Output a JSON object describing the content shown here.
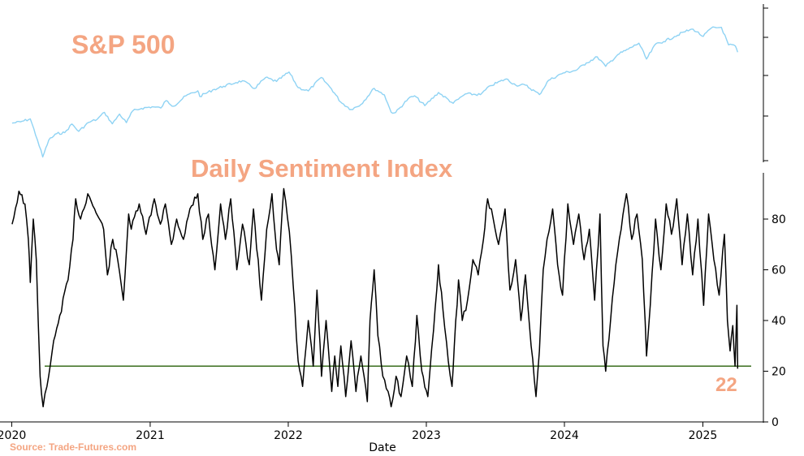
{
  "chart_data": [
    {
      "type": "line",
      "title": "S&P 500",
      "colors": {
        "title": "#f4a582",
        "line": "#8fd3f4"
      },
      "ylim": [
        2200,
        6600
      ],
      "series": [
        {
          "x": [
            "2020-01-02",
            "2020-01-24",
            "2020-02-19",
            "2020-03-09",
            "2020-03-23",
            "2020-04-08",
            "2020-04-29",
            "2020-05-20",
            "2020-06-08",
            "2020-06-26",
            "2020-07-22",
            "2020-08-14",
            "2020-09-02",
            "2020-09-23",
            "2020-10-12",
            "2020-10-30",
            "2020-11-16",
            "2020-12-09",
            "2021-01-06",
            "2021-01-29",
            "2021-02-12",
            "2021-03-04",
            "2021-04-05",
            "2021-05-07",
            "2021-05-12",
            "2021-06-15",
            "2021-07-14",
            "2021-08-16",
            "2021-09-02",
            "2021-10-04",
            "2021-11-02",
            "2021-12-01",
            "2022-01-03",
            "2022-01-27",
            "2022-02-23",
            "2022-03-29",
            "2022-04-25",
            "2022-05-19",
            "2022-06-16",
            "2022-07-12",
            "2022-08-16",
            "2022-09-12",
            "2022-09-30",
            "2022-10-12",
            "2022-11-14",
            "2022-12-01",
            "2022-12-28",
            "2023-02-02",
            "2023-03-13",
            "2023-04-14",
            "2023-05-24",
            "2023-06-20",
            "2023-07-31",
            "2023-08-25",
            "2023-09-20",
            "2023-10-27",
            "2023-11-20",
            "2023-12-29",
            "2024-01-31",
            "2024-02-28",
            "2024-03-28",
            "2024-04-19",
            "2024-05-21",
            "2024-06-18",
            "2024-07-16",
            "2024-08-05",
            "2024-08-30",
            "2024-09-19",
            "2024-10-18",
            "2024-11-11",
            "2024-12-06",
            "2025-01-02",
            "2025-01-23",
            "2025-02-19",
            "2025-03-10",
            "2025-03-28",
            "2025-04-03"
          ],
          "values": [
            3258,
            3295,
            3386,
            2750,
            2237,
            2750,
            2940,
            2970,
            3232,
            3010,
            3277,
            3373,
            3580,
            3237,
            3530,
            3270,
            3627,
            3702,
            3749,
            3714,
            3935,
            3768,
            4078,
            4232,
            4063,
            4255,
            4369,
            4479,
            4537,
            4300,
            4630,
            4513,
            4796,
            4327,
            4226,
            4632,
            4296,
            3900,
            3667,
            3819,
            4305,
            4110,
            3586,
            3577,
            3991,
            4080,
            3783,
            4180,
            3855,
            4137,
            4115,
            4388,
            4589,
            4405,
            4402,
            4117,
            4547,
            4770,
            4846,
            5069,
            5254,
            4967,
            5321,
            5487,
            5667,
            5186,
            5648,
            5713,
            5864,
            6001,
            6090,
            5868,
            6118,
            6144,
            5614,
            5580,
            5396
          ]
        }
      ]
    },
    {
      "type": "line",
      "title": "Daily Sentiment Index",
      "xlabel": "Date",
      "colors": {
        "title": "#f4a582",
        "line": "#000000",
        "reference_line": "#3a6e1e",
        "annotation": "#f4a582"
      },
      "xlim": [
        "2019-12-01",
        "2025-06-10"
      ],
      "ylim": [
        0,
        96
      ],
      "x_ticks": [
        "2020",
        "2021",
        "2022",
        "2023",
        "2024",
        "2025"
      ],
      "y_ticks": [
        0,
        20,
        40,
        60,
        80
      ],
      "reference_line": 22,
      "annotation": "22",
      "series": [
        {
          "x": [
            "2020-01-02",
            "2020-01-20",
            "2020-02-05",
            "2020-02-14",
            "2020-02-19",
            "2020-02-27",
            "2020-03-06",
            "2020-03-16",
            "2020-03-24",
            "2020-04-03",
            "2020-04-17",
            "2020-05-07",
            "2020-05-29",
            "2020-06-11",
            "2020-06-18",
            "2020-07-01",
            "2020-07-20",
            "2020-08-07",
            "2020-08-31",
            "2020-09-10",
            "2020-09-24",
            "2020-10-07",
            "2020-10-22",
            "2020-11-05",
            "2020-11-12",
            "2020-12-03",
            "2020-12-21",
            "2021-01-12",
            "2021-01-28",
            "2021-02-10",
            "2021-02-26",
            "2021-03-12",
            "2021-03-30",
            "2021-04-16",
            "2021-05-07",
            "2021-05-20",
            "2021-06-04",
            "2021-06-21",
            "2021-07-06",
            "2021-07-19",
            "2021-08-02",
            "2021-08-18",
            "2021-09-02",
            "2021-09-20",
            "2021-10-01",
            "2021-10-22",
            "2021-11-05",
            "2021-11-19",
            "2021-12-01",
            "2021-12-08",
            "2021-12-20",
            "2022-01-04",
            "2022-01-14",
            "2022-01-27",
            "2022-02-08",
            "2022-02-23",
            "2022-03-08",
            "2022-03-18",
            "2022-03-30",
            "2022-04-11",
            "2022-04-26",
            "2022-05-04",
            "2022-05-12",
            "2022-05-20",
            "2022-06-02",
            "2022-06-16",
            "2022-06-29",
            "2022-07-12",
            "2022-07-29",
            "2022-08-05",
            "2022-08-16",
            "2022-08-26",
            "2022-09-08",
            "2022-09-22",
            "2022-09-30",
            "2022-10-13",
            "2022-10-26",
            "2022-11-10",
            "2022-11-25",
            "2022-12-07",
            "2022-12-20",
            "2023-01-05",
            "2023-01-20",
            "2023-02-02",
            "2023-02-14",
            "2023-02-28",
            "2023-03-10",
            "2023-03-16",
            "2023-03-27",
            "2023-04-06",
            "2023-04-20",
            "2023-05-04",
            "2023-05-18",
            "2023-06-01",
            "2023-06-12",
            "2023-06-27",
            "2023-07-11",
            "2023-07-28",
            "2023-08-10",
            "2023-08-25",
            "2023-09-08",
            "2023-09-20",
            "2023-10-05",
            "2023-10-18",
            "2023-10-27",
            "2023-11-06",
            "2023-11-16",
            "2023-12-01",
            "2023-12-14",
            "2023-12-27",
            "2024-01-10",
            "2024-01-25",
            "2024-02-08",
            "2024-02-22",
            "2024-03-07",
            "2024-03-21",
            "2024-04-04",
            "2024-04-12",
            "2024-04-19",
            "2024-05-02",
            "2024-05-16",
            "2024-05-30",
            "2024-06-13",
            "2024-06-27",
            "2024-07-11",
            "2024-07-25",
            "2024-08-05",
            "2024-08-15",
            "2024-08-29",
            "2024-09-12",
            "2024-09-26",
            "2024-10-10",
            "2024-10-24",
            "2024-11-07",
            "2024-11-21",
            "2024-12-05",
            "2024-12-19",
            "2025-01-03",
            "2025-01-16",
            "2025-01-30",
            "2025-02-13",
            "2025-02-27",
            "2025-03-07",
            "2025-03-14",
            "2025-03-21",
            "2025-03-27",
            "2025-04-01",
            "2025-04-03"
          ],
          "values": [
            78,
            91,
            86,
            72,
            55,
            80,
            64,
            18,
            6,
            14,
            28,
            42,
            56,
            72,
            88,
            80,
            90,
            84,
            76,
            58,
            72,
            64,
            48,
            82,
            76,
            86,
            74,
            88,
            78,
            86,
            70,
            80,
            72,
            84,
            90,
            72,
            82,
            60,
            86,
            72,
            88,
            60,
            78,
            62,
            84,
            48,
            76,
            90,
            68,
            62,
            92,
            75,
            54,
            24,
            14,
            40,
            22,
            52,
            18,
            40,
            12,
            26,
            14,
            30,
            10,
            32,
            12,
            26,
            8,
            40,
            60,
            34,
            18,
            12,
            6,
            18,
            10,
            26,
            14,
            42,
            20,
            10,
            36,
            62,
            44,
            24,
            14,
            30,
            56,
            40,
            48,
            64,
            58,
            72,
            88,
            80,
            70,
            84,
            52,
            64,
            40,
            58,
            30,
            10,
            28,
            60,
            72,
            84,
            62,
            50,
            86,
            70,
            82,
            64,
            76,
            48,
            82,
            30,
            20,
            40,
            62,
            76,
            90,
            72,
            82,
            64,
            26,
            46,
            80,
            60,
            86,
            74,
            88,
            62,
            82,
            58,
            80,
            46,
            82,
            64,
            50,
            74,
            40,
            28,
            38,
            22,
            46,
            21
          ]
        }
      ]
    }
  ],
  "source_note": "Source: Trade-Futures.com"
}
